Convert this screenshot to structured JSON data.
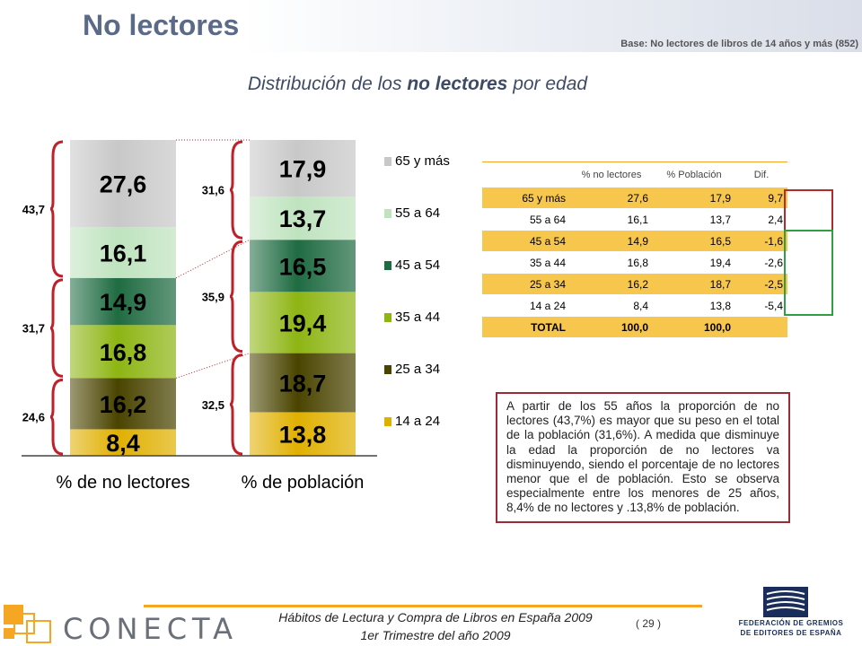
{
  "header": {
    "title": "No lectores",
    "base_note": "Base: No lectores de libros de 14 años y más (852)",
    "subtitle_pre": "Distribución de los ",
    "subtitle_bold": "no lectores",
    "subtitle_post": " por edad"
  },
  "chart_data": {
    "type": "bar",
    "stacked": true,
    "normalized": true,
    "categories": [
      "% de no lectores",
      "% de población"
    ],
    "series": [
      {
        "name": "14 a 24",
        "values": [
          8.4,
          13.8
        ],
        "color": "#e0b000"
      },
      {
        "name": "25 a 34",
        "values": [
          16.2,
          18.7
        ],
        "color": "#4a4400"
      },
      {
        "name": "35 a 44",
        "values": [
          16.8,
          19.4
        ],
        "color": "#8db513"
      },
      {
        "name": "45 a 54",
        "values": [
          14.9,
          16.5
        ],
        "color": "#1f6b42"
      },
      {
        "name": "55 a 64",
        "values": [
          16.1,
          13.7
        ],
        "color": "#bfe3bf"
      },
      {
        "name": "65 y más",
        "values": [
          27.6,
          17.9
        ],
        "color": "#c8c8c8"
      }
    ],
    "legend_position": "right",
    "groups": [
      {
        "bar": 0,
        "from": 0,
        "to": 1,
        "total": "24,6"
      },
      {
        "bar": 0,
        "from": 2,
        "to": 3,
        "total": "31,7"
      },
      {
        "bar": 0,
        "from": 4,
        "to": 5,
        "total": "43,7"
      },
      {
        "bar": 1,
        "from": 0,
        "to": 1,
        "total": "32,5"
      },
      {
        "bar": 1,
        "from": 2,
        "to": 3,
        "total": "35,9"
      },
      {
        "bar": 1,
        "from": 4,
        "to": 5,
        "total": "31,6"
      }
    ]
  },
  "table": {
    "headers": [
      "",
      "% no lectores",
      "% Población",
      "Dif."
    ],
    "rows": [
      [
        "65 y más",
        "27,6",
        "17,9",
        "9,7"
      ],
      [
        "55 a 64",
        "16,1",
        "13,7",
        "2,4"
      ],
      [
        "45 a 54",
        "14,9",
        "16,5",
        "-1,6"
      ],
      [
        "35 a 44",
        "16,8",
        "19,4",
        "-2,6"
      ],
      [
        "25 a 34",
        "16,2",
        "18,7",
        "-2,5"
      ],
      [
        "14 a 24",
        "8,4",
        "13,8",
        "-5,4"
      ],
      [
        "TOTAL",
        "100,0",
        "100,0",
        ""
      ]
    ]
  },
  "note": "A partir de los 55 años la proporción de no lectores (43,7%) es mayor que su peso en el total de la población (31,6%). A medida que disminuye la edad la proporción de no lectores va disminuyendo, siendo el porcentaje de no lectores menor que el de población. Esto se observa especialmente entre los menores de 25 años, 8,4% de no lectores y .13,8% de población.",
  "footer": {
    "line1": "Hábitos de Lectura y Compra de Libros en España 2009",
    "line2": "1er Trimestre del año 2009",
    "page": "( 29 )",
    "brand": "CONECTA",
    "federation_line1": "FEDERACIÓN DE GREMIOS",
    "federation_line2": "DE EDITORES DE ESPAÑA"
  },
  "colors": {
    "title": "#5b6a86",
    "accent_orange": "#f5a623",
    "brace_red": "#c0202a",
    "table_band": "#f7c64d",
    "box_red": "#b22a2a",
    "box_green": "#2ea043"
  }
}
